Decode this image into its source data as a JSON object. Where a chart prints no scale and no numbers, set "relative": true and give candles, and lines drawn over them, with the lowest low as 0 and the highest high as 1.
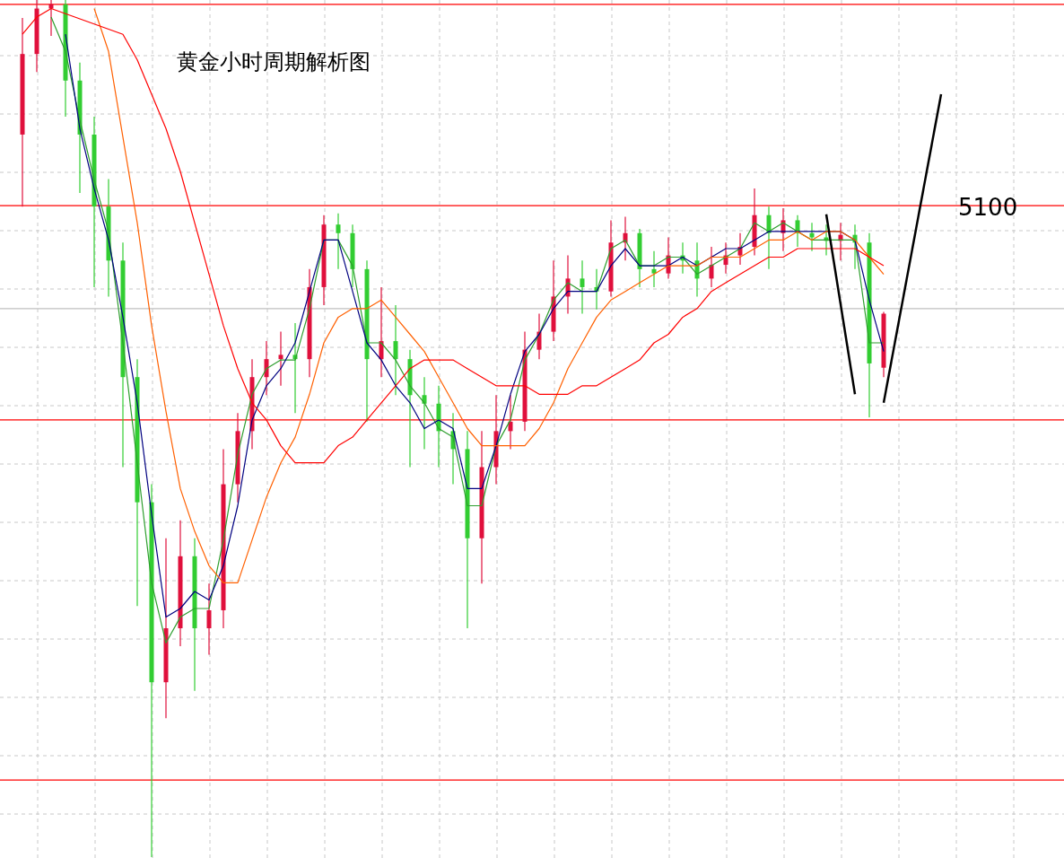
{
  "chart_data": {
    "type": "candlestick",
    "title": "黄金小时周期解析图",
    "relative": true,
    "grid": true,
    "categories": [
      null,
      null,
      null,
      null,
      null,
      null,
      null,
      null,
      null,
      null,
      null,
      null,
      null,
      null,
      null,
      null,
      null,
      null,
      null,
      null,
      null,
      null,
      null,
      null,
      null,
      null,
      null,
      null,
      null,
      null,
      null,
      null,
      null,
      null,
      null,
      null,
      null,
      null,
      null,
      null,
      null,
      null,
      null,
      null,
      null,
      null,
      null,
      null,
      null,
      null,
      null,
      null,
      null,
      null,
      null,
      null,
      null,
      null,
      null,
      null,
      null,
      null,
      null,
      null,
      null,
      null
    ],
    "ohlc": [
      [
        0.843,
        0.979,
        0.759,
        0.937
      ],
      [
        0.937,
        1.0,
        0.916,
        0.99
      ],
      [
        0.99,
        1.0,
        0.958,
        0.995
      ],
      [
        0.995,
        1.0,
        0.864,
        0.906
      ],
      [
        0.906,
        0.927,
        0.775,
        0.843
      ],
      [
        0.843,
        0.864,
        0.665,
        0.759
      ],
      [
        0.759,
        0.791,
        0.654,
        0.696
      ],
      [
        0.696,
        0.717,
        0.455,
        0.56
      ],
      [
        0.56,
        0.581,
        0.293,
        0.414
      ],
      [
        0.414,
        0.435,
        0.0,
        0.204
      ],
      [
        0.204,
        0.372,
        0.162,
        0.267
      ],
      [
        0.267,
        0.393,
        0.246,
        0.351
      ],
      [
        0.351,
        0.372,
        0.194,
        0.267
      ],
      [
        0.267,
        0.319,
        0.236,
        0.288
      ],
      [
        0.288,
        0.476,
        0.267,
        0.435
      ],
      [
        0.435,
        0.518,
        0.414,
        0.497
      ],
      [
        0.497,
        0.581,
        0.476,
        0.56
      ],
      [
        0.56,
        0.602,
        0.539,
        0.581
      ],
      [
        0.581,
        0.613,
        0.55,
        0.586
      ],
      [
        0.586,
        0.623,
        0.518,
        0.581
      ],
      [
        0.581,
        0.686,
        0.56,
        0.665
      ],
      [
        0.665,
        0.749,
        0.644,
        0.738
      ],
      [
        0.738,
        0.751,
        0.686,
        0.728
      ],
      [
        0.728,
        0.738,
        0.665,
        0.686
      ],
      [
        0.686,
        0.696,
        0.508,
        0.581
      ],
      [
        0.581,
        0.665,
        0.56,
        0.602
      ],
      [
        0.602,
        0.644,
        0.539,
        0.581
      ],
      [
        0.581,
        0.592,
        0.455,
        0.539
      ],
      [
        0.539,
        0.56,
        0.476,
        0.529
      ],
      [
        0.529,
        0.55,
        0.455,
        0.497
      ],
      [
        0.497,
        0.518,
        0.435,
        0.476
      ],
      [
        0.476,
        0.497,
        0.267,
        0.372
      ],
      [
        0.372,
        0.497,
        0.319,
        0.455
      ],
      [
        0.455,
        0.539,
        0.435,
        0.497
      ],
      [
        0.497,
        0.539,
        0.476,
        0.508
      ],
      [
        0.508,
        0.613,
        0.497,
        0.592
      ],
      [
        0.592,
        0.634,
        0.581,
        0.613
      ],
      [
        0.613,
        0.696,
        0.602,
        0.654
      ],
      [
        0.654,
        0.702,
        0.634,
        0.675
      ],
      [
        0.675,
        0.696,
        0.634,
        0.665
      ],
      [
        0.665,
        0.686,
        0.639,
        0.66
      ],
      [
        0.66,
        0.743,
        0.654,
        0.717
      ],
      [
        0.717,
        0.747,
        0.696,
        0.728
      ],
      [
        0.728,
        0.733,
        0.665,
        0.686
      ],
      [
        0.686,
        0.707,
        0.665,
        0.681
      ],
      [
        0.681,
        0.723,
        0.675,
        0.702
      ],
      [
        0.702,
        0.717,
        0.681,
        0.696
      ],
      [
        0.696,
        0.717,
        0.654,
        0.675
      ],
      [
        0.675,
        0.712,
        0.665,
        0.691
      ],
      [
        0.691,
        0.717,
        0.681,
        0.702
      ],
      [
        0.702,
        0.728,
        0.691,
        0.712
      ],
      [
        0.712,
        0.78,
        0.702,
        0.749
      ],
      [
        0.749,
        0.759,
        0.686,
        0.728
      ],
      [
        0.728,
        0.757,
        0.707,
        0.743
      ],
      [
        0.743,
        0.749,
        0.712,
        0.728
      ],
      [
        0.728,
        0.74,
        0.707,
        0.723
      ],
      [
        0.723,
        0.738,
        0.702,
        0.719
      ],
      [
        0.719,
        0.74,
        0.696,
        0.726
      ],
      [
        0.726,
        0.738,
        0.686,
        0.717
      ],
      [
        0.717,
        0.728,
        0.513,
        0.576
      ],
      [
        0.571,
        0.636,
        0.56,
        0.634
      ],
      null,
      null,
      null,
      null,
      null
    ],
    "colors": [
      "#e0103c",
      "#e0103c",
      "#e0103c",
      "#32cd32",
      "#32cd32",
      "#32cd32",
      "#32cd32",
      "#32cd32",
      "#32cd32",
      "#32cd32",
      "#e0103c",
      "#e0103c",
      "#32cd32",
      "#e0103c",
      "#e0103c",
      "#e0103c",
      "#e0103c",
      "#e0103c",
      "#e0103c",
      "#32cd32",
      "#e0103c",
      "#e0103c",
      "#32cd32",
      "#32cd32",
      "#32cd32",
      "#e0103c",
      "#32cd32",
      "#32cd32",
      "#32cd32",
      "#32cd32",
      "#32cd32",
      "#32cd32",
      "#e0103c",
      "#e0103c",
      "#e0103c",
      "#e0103c",
      "#e0103c",
      "#e0103c",
      "#e0103c",
      "#32cd32",
      "#32cd32",
      "#e0103c",
      "#e0103c",
      "#32cd32",
      "#32cd32",
      "#e0103c",
      "#32cd32",
      "#32cd32",
      "#e0103c",
      "#e0103c",
      "#e0103c",
      "#e0103c",
      "#32cd32",
      "#e0103c",
      "#32cd32",
      "#32cd32",
      "#32cd32",
      "#e0103c",
      "#32cd32",
      "#32cd32",
      "#e0103c",
      null,
      null,
      null,
      null,
      null
    ],
    "annotations": [
      {
        "text": "5100",
        "y": 0.76
      }
    ],
    "series": [
      {
        "type": "line",
        "color": "#2e9e2e",
        "values": [
          null,
          null,
          0.98,
          0.94,
          0.86,
          0.79,
          0.73,
          0.6,
          0.46,
          0.32,
          0.25,
          0.28,
          0.29,
          0.29,
          0.37,
          0.47,
          0.54,
          0.57,
          0.58,
          0.58,
          0.64,
          0.72,
          0.72,
          0.69,
          0.6,
          0.6,
          0.58,
          0.55,
          0.53,
          0.5,
          0.49,
          0.41,
          0.41,
          0.48,
          0.51,
          0.58,
          0.61,
          0.65,
          0.67,
          0.66,
          0.66,
          0.71,
          0.72,
          0.69,
          0.69,
          0.7,
          0.7,
          0.68,
          0.69,
          0.7,
          0.71,
          0.74,
          0.73,
          0.74,
          0.73,
          0.72,
          0.72,
          0.72,
          0.72,
          0.6,
          0.6,
          null,
          null,
          null,
          null,
          null
        ]
      },
      {
        "type": "line",
        "color": "#000080",
        "values": [
          null,
          null,
          null,
          0.96,
          0.85,
          0.78,
          0.72,
          0.63,
          0.53,
          0.4,
          0.28,
          0.29,
          0.31,
          0.3,
          0.34,
          0.41,
          0.51,
          0.55,
          0.57,
          0.6,
          0.66,
          0.72,
          0.72,
          0.66,
          0.6,
          0.58,
          0.55,
          0.53,
          0.5,
          0.51,
          0.5,
          0.43,
          0.43,
          0.48,
          0.54,
          0.59,
          0.61,
          0.64,
          0.66,
          0.66,
          0.66,
          0.69,
          0.71,
          0.69,
          0.69,
          0.69,
          0.7,
          0.69,
          0.7,
          0.71,
          0.71,
          0.72,
          0.73,
          0.73,
          0.73,
          0.73,
          0.73,
          0.73,
          0.72,
          0.65,
          0.59,
          null,
          null,
          null,
          null,
          null
        ]
      },
      {
        "type": "line",
        "color": "#ff6000",
        "values": [
          null,
          null,
          null,
          null,
          null,
          0.99,
          0.94,
          0.84,
          0.74,
          0.62,
          0.52,
          0.43,
          0.38,
          0.34,
          0.32,
          0.32,
          0.37,
          0.42,
          0.46,
          0.49,
          0.54,
          0.6,
          0.63,
          0.64,
          0.64,
          0.65,
          0.63,
          0.61,
          0.59,
          0.56,
          0.53,
          0.5,
          0.48,
          0.48,
          0.48,
          0.48,
          0.5,
          0.53,
          0.57,
          0.6,
          0.63,
          0.65,
          0.66,
          0.67,
          0.68,
          0.69,
          0.69,
          0.69,
          0.7,
          0.7,
          0.7,
          0.71,
          0.72,
          0.72,
          0.73,
          0.72,
          0.73,
          0.73,
          0.72,
          0.7,
          0.68,
          null,
          null,
          null,
          null,
          null
        ]
      },
      {
        "type": "line",
        "color": "#ff0000",
        "values": [
          0.96,
          0.98,
          0.99,
          null,
          null,
          null,
          null,
          0.96,
          0.93,
          0.89,
          0.85,
          0.8,
          0.74,
          0.68,
          0.62,
          0.57,
          0.53,
          0.51,
          0.48,
          0.46,
          0.46,
          0.46,
          0.48,
          0.49,
          0.51,
          0.53,
          0.55,
          0.57,
          0.58,
          0.58,
          0.58,
          0.57,
          0.56,
          0.55,
          0.55,
          0.55,
          0.54,
          0.54,
          0.54,
          0.55,
          0.55,
          0.56,
          0.57,
          0.58,
          0.6,
          0.61,
          0.63,
          0.64,
          0.66,
          0.67,
          0.68,
          0.69,
          0.7,
          0.7,
          0.71,
          0.71,
          0.71,
          0.71,
          0.71,
          0.7,
          0.69,
          null,
          null,
          null,
          null,
          null
        ]
      },
      {
        "type": "line",
        "color": "#000000",
        "values": [
          null,
          null,
          null,
          null,
          null,
          null,
          null,
          null,
          null,
          null,
          null,
          null,
          null,
          null,
          null,
          null,
          null,
          null,
          null,
          null,
          null,
          null,
          null,
          null,
          null,
          null,
          null,
          null,
          null,
          null,
          null,
          null,
          null,
          null,
          null,
          null,
          null,
          null,
          null,
          null,
          null,
          null,
          null,
          null,
          null,
          null,
          null,
          null,
          null,
          null,
          null,
          null,
          null,
          null,
          null,
          null,
          0.75,
          null,
          0.54,
          null,
          null,
          null,
          null,
          null,
          null,
          null
        ]
      },
      {
        "type": "line",
        "color": "#000000",
        "values": [
          null,
          null,
          null,
          null,
          null,
          null,
          null,
          null,
          null,
          null,
          null,
          null,
          null,
          null,
          null,
          null,
          null,
          null,
          null,
          null,
          null,
          null,
          null,
          null,
          null,
          null,
          null,
          null,
          null,
          null,
          null,
          null,
          null,
          null,
          null,
          null,
          null,
          null,
          null,
          null,
          null,
          null,
          null,
          null,
          null,
          null,
          null,
          null,
          null,
          null,
          null,
          null,
          null,
          null,
          null,
          null,
          null,
          null,
          null,
          null,
          0.53,
          null,
          null,
          null,
          0.89,
          null
        ]
      }
    ],
    "ref_lines": [
      {
        "axis": "y",
        "value": 0.995,
        "color": "#ff0000"
      },
      {
        "axis": "y",
        "value": 0.76,
        "color": "#ff0000"
      },
      {
        "axis": "y",
        "value": 0.64,
        "color": "#c0c0c0"
      },
      {
        "axis": "y",
        "value": 0.51,
        "color": "#ff0000"
      },
      {
        "axis": "y",
        "value": 0.09,
        "color": "#ff0000"
      }
    ]
  }
}
